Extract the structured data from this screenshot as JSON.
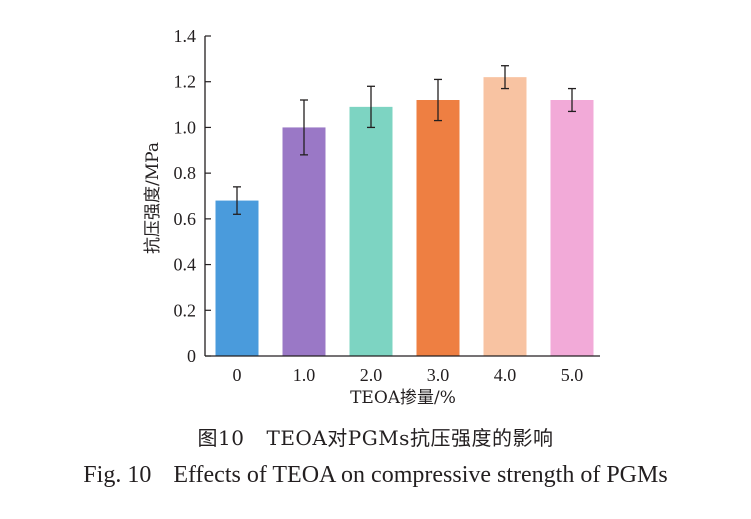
{
  "chart_data": {
    "type": "bar",
    "categories": [
      "0",
      "1.0",
      "2.0",
      "3.0",
      "4.0",
      "5.0"
    ],
    "values": [
      0.68,
      1.0,
      1.09,
      1.12,
      1.22,
      1.12
    ],
    "errors": [
      0.06,
      0.12,
      0.09,
      0.09,
      0.05,
      0.05
    ],
    "colors": [
      "#4a9bdc",
      "#9a78c6",
      "#7dd4c2",
      "#ee7f42",
      "#f8c3a2",
      "#f2aad8"
    ],
    "ylim": [
      0,
      1.4
    ],
    "yticks": [
      "0",
      "0.2",
      "0.4",
      "0.6",
      "0.8",
      "1.0",
      "1.2",
      "1.4"
    ],
    "xlabel": "TEOA掺量/%",
    "ylabel": "抗压强度/MPa",
    "grid": false,
    "legend": "none"
  },
  "caption": {
    "cn_number": "图10",
    "cn_text": "TEOA对PGMs抗压强度的影响",
    "en_number": "Fig. 10",
    "en_text": "Effects of TEOA on compressive strength of PGMs"
  }
}
